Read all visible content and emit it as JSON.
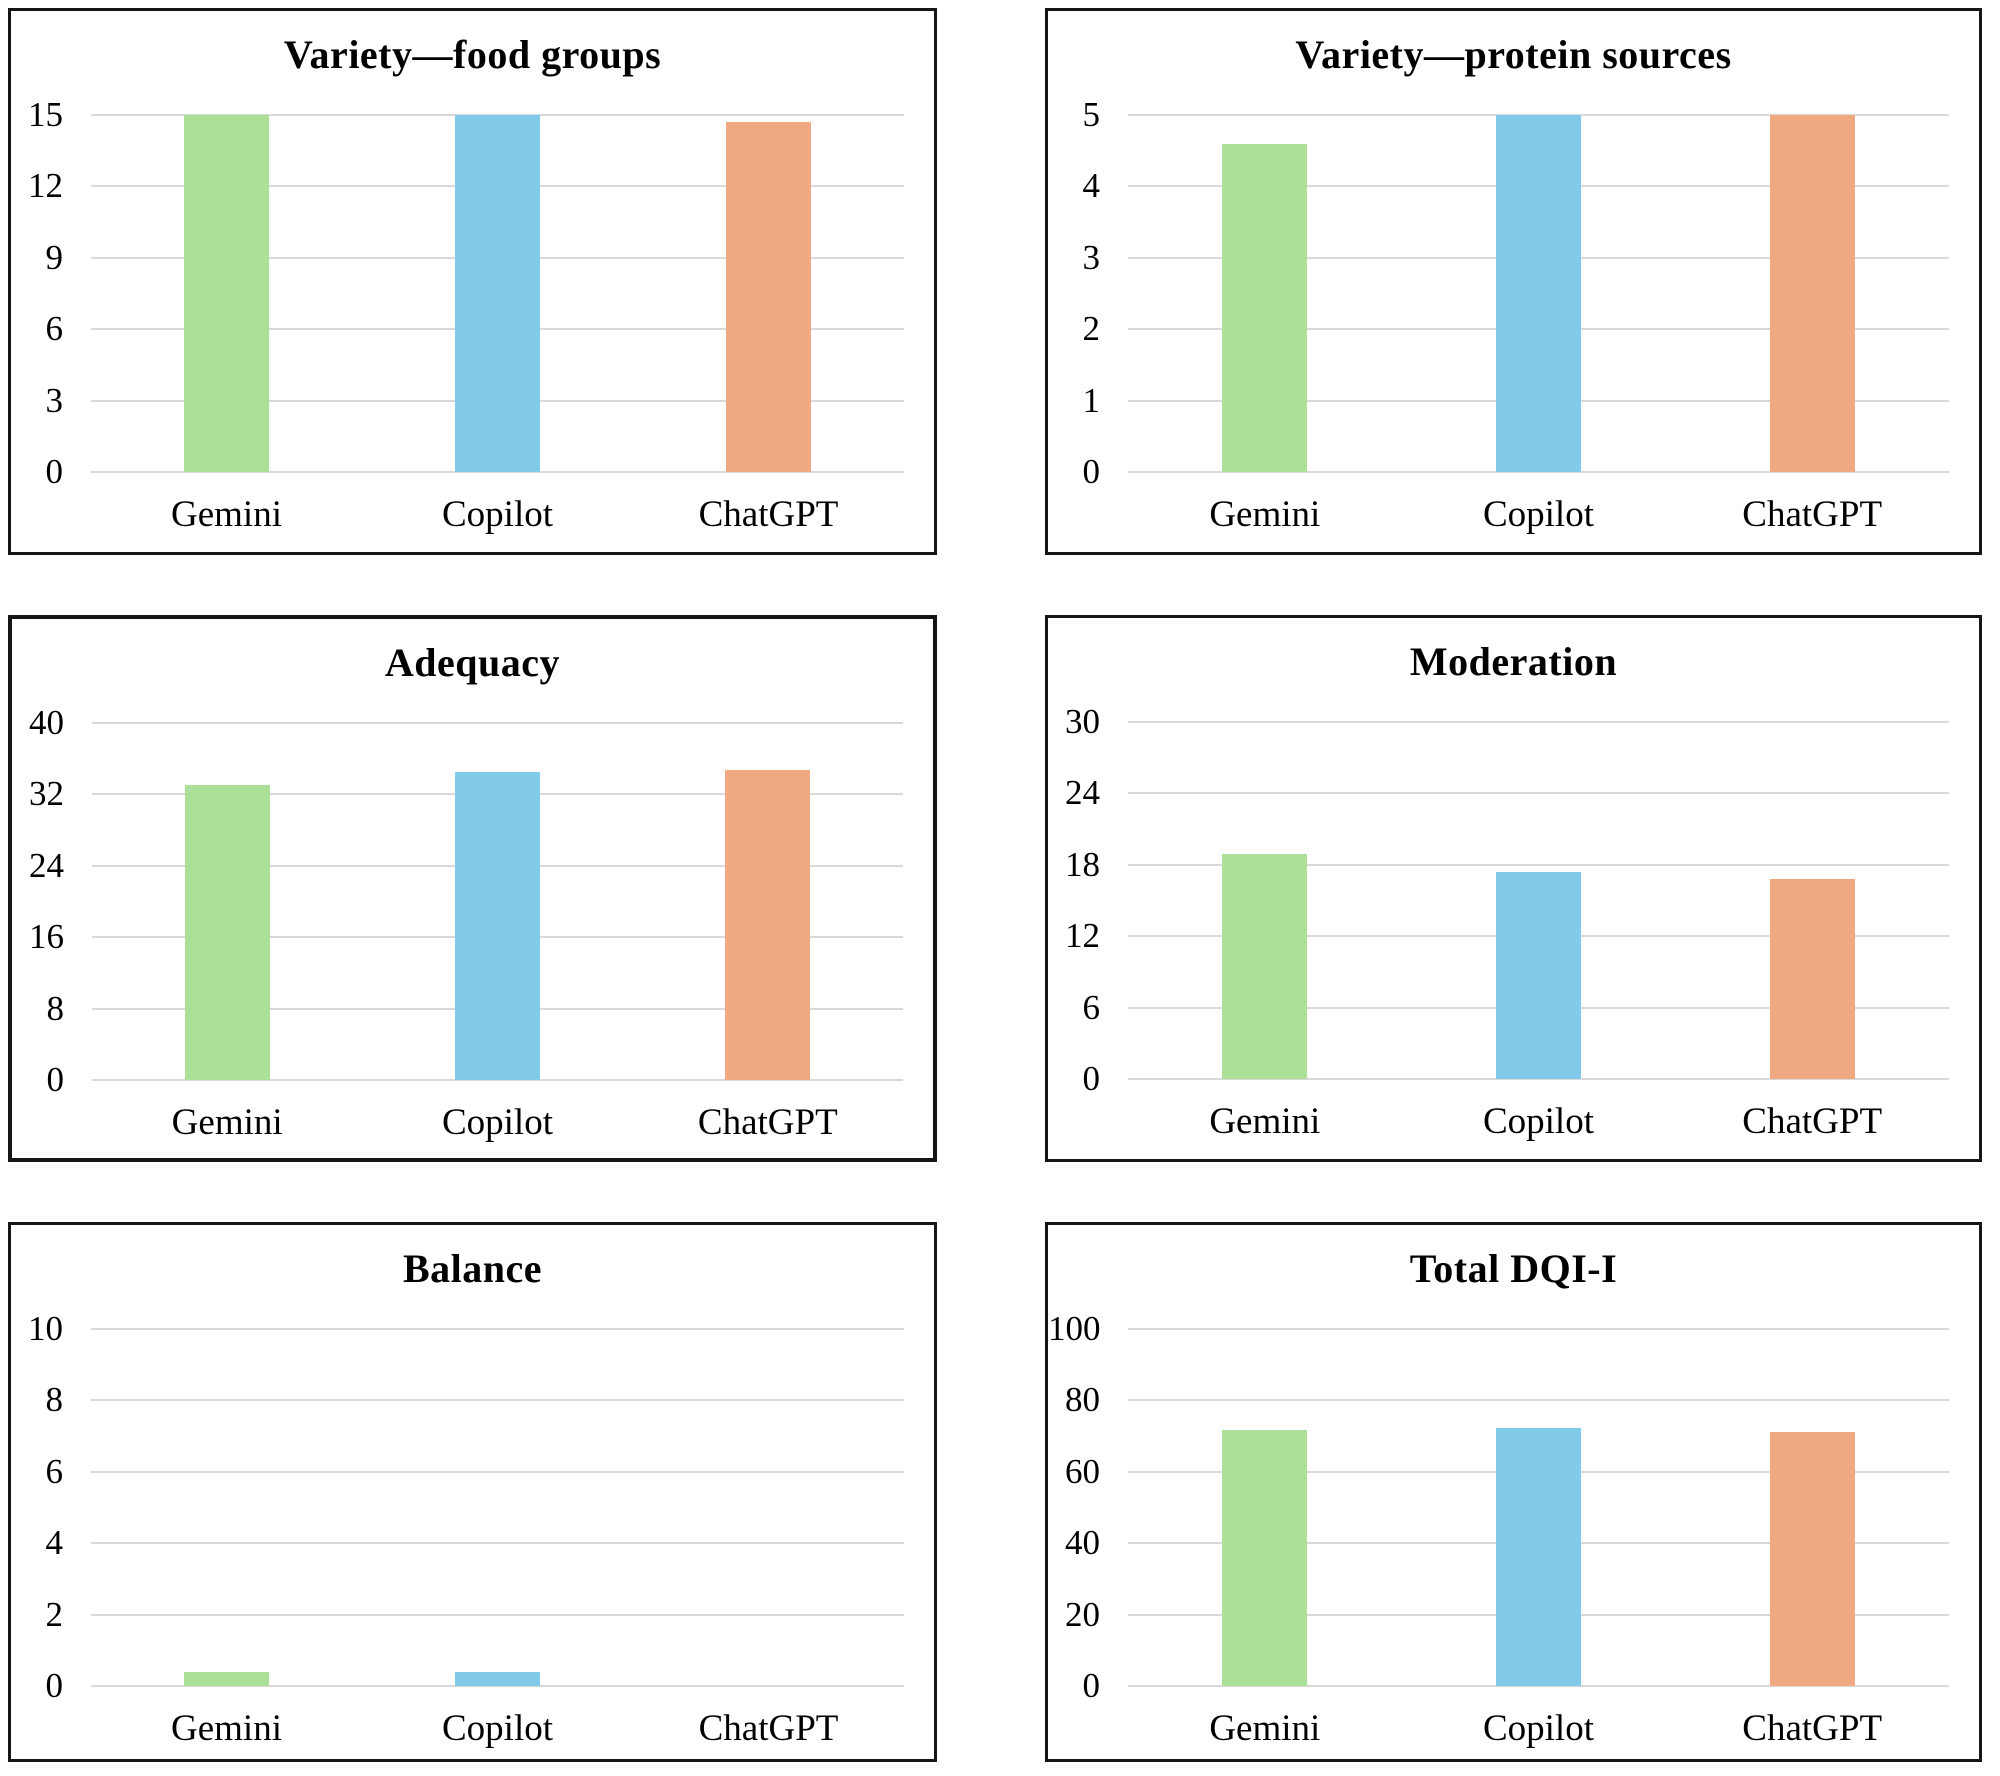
{
  "figure": {
    "background": "#ffffff",
    "grid_color": "#d9d9d9",
    "border_color": "#161616",
    "bar_colors": {
      "gemini_green": "#ace099",
      "copilot_blue": "#82caea",
      "chatgpt_orange": "#f0a980"
    }
  },
  "chart_data": [
    {
      "type": "bar",
      "title": "Variety—food groups",
      "categories": [
        "Gemini",
        "Copilot",
        "ChatGPT"
      ],
      "values": [
        15,
        15,
        14.7
      ],
      "yticks": [
        0,
        3,
        6,
        9,
        12,
        15
      ],
      "ylim": [
        0,
        15
      ],
      "xlabel": "",
      "ylabel": "",
      "grid": true,
      "legend": "none",
      "bar_colors": [
        "#ace099",
        "#82caea",
        "#f0a980"
      ]
    },
    {
      "type": "bar",
      "title": "Variety—protein sources",
      "categories": [
        "Gemini",
        "Copilot",
        "ChatGPT"
      ],
      "values": [
        4.6,
        5,
        5
      ],
      "yticks": [
        0,
        1,
        2,
        3,
        4,
        5
      ],
      "ylim": [
        0,
        5
      ],
      "xlabel": "",
      "ylabel": "",
      "grid": true,
      "legend": "none",
      "bar_colors": [
        "#ace099",
        "#82caea",
        "#f0a980"
      ]
    },
    {
      "type": "bar",
      "title": "Adequacy",
      "categories": [
        "Gemini",
        "Copilot",
        "ChatGPT"
      ],
      "values": [
        33.1,
        34.5,
        34.7
      ],
      "yticks": [
        0,
        8,
        16,
        24,
        32,
        40
      ],
      "ylim": [
        0,
        40
      ],
      "xlabel": "",
      "ylabel": "",
      "grid": true,
      "legend": "none",
      "bar_colors": [
        "#ace099",
        "#82caea",
        "#f0a980"
      ]
    },
    {
      "type": "bar",
      "title": "Moderation",
      "categories": [
        "Gemini",
        "Copilot",
        "ChatGPT"
      ],
      "values": [
        18.9,
        17.4,
        16.8
      ],
      "yticks": [
        0,
        6,
        12,
        18,
        24,
        30
      ],
      "ylim": [
        0,
        30
      ],
      "xlabel": "",
      "ylabel": "",
      "grid": true,
      "legend": "none",
      "bar_colors": [
        "#ace099",
        "#82caea",
        "#f0a980"
      ]
    },
    {
      "type": "bar",
      "title": "Balance",
      "categories": [
        "Gemini",
        "Copilot",
        "ChatGPT"
      ],
      "values": [
        0.4,
        0.4,
        0
      ],
      "yticks": [
        0,
        2,
        4,
        6,
        8,
        10
      ],
      "ylim": [
        0,
        10
      ],
      "xlabel": "",
      "ylabel": "",
      "grid": true,
      "legend": "none",
      "bar_colors": [
        "#ace099",
        "#82caea",
        "#f0a980"
      ]
    },
    {
      "type": "bar",
      "title": "Total DQI-I",
      "categories": [
        "Gemini",
        "Copilot",
        "ChatGPT"
      ],
      "values": [
        71.7,
        72.4,
        71.1
      ],
      "yticks": [
        0,
        20,
        40,
        60,
        80,
        100
      ],
      "ylim": [
        0,
        100
      ],
      "xlabel": "",
      "ylabel": "",
      "grid": true,
      "legend": "none",
      "bar_colors": [
        "#ace099",
        "#82caea",
        "#f0a980"
      ]
    }
  ]
}
